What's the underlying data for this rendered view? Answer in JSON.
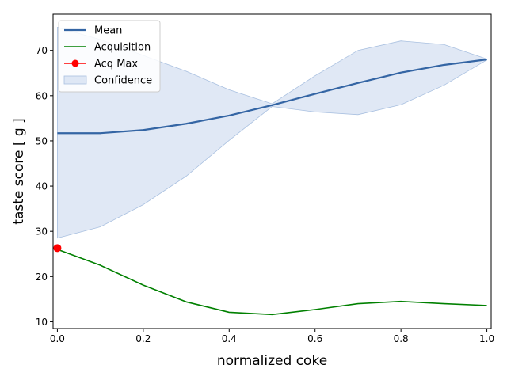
{
  "chart_data": {
    "type": "line",
    "xlabel": "normalized coke",
    "ylabel": "taste score [ g ]",
    "xlim": [
      -0.01,
      1.01
    ],
    "ylim": [
      8.5,
      78
    ],
    "x_ticks": [
      0.0,
      0.2,
      0.4,
      0.6,
      0.8,
      1.0
    ],
    "x_tick_labels": [
      "0.0",
      "0.2",
      "0.4",
      "0.6",
      "0.8",
      "1.0"
    ],
    "y_ticks": [
      10,
      20,
      30,
      40,
      50,
      60,
      70
    ],
    "y_tick_labels": [
      "10",
      "20",
      "30",
      "40",
      "50",
      "60",
      "70"
    ],
    "grid": false,
    "legend_position": "top-left",
    "x": [
      0.0,
      0.1,
      0.2,
      0.3,
      0.4,
      0.5,
      0.6,
      0.7,
      0.8,
      0.9,
      1.0
    ],
    "series": [
      {
        "name": "Mean",
        "style": "line",
        "color": "#3465a4",
        "values": [
          51.7,
          51.7,
          52.4,
          53.8,
          55.6,
          57.9,
          60.4,
          62.8,
          65.1,
          66.8,
          68.0
        ]
      },
      {
        "name": "Acquisition",
        "style": "line",
        "color": "#008000",
        "x": [
          0.0,
          0.1,
          0.2,
          0.3,
          0.4,
          0.5,
          0.6,
          0.7,
          0.8,
          0.9,
          1.0
        ],
        "values": [
          26.0,
          22.5,
          18.1,
          14.4,
          12.1,
          11.6,
          12.7,
          14.0,
          14.5,
          14.0,
          13.6
        ]
      },
      {
        "name": "Acq Max",
        "style": "marker",
        "color": "#ff0000",
        "x": [
          0.0
        ],
        "values": [
          26.3
        ]
      },
      {
        "name": "Confidence",
        "style": "band",
        "color": "#c6d5ec",
        "lower": [
          28.5,
          31.0,
          35.9,
          42.2,
          50.1,
          57.6,
          56.4,
          55.8,
          58.0,
          62.3,
          67.9
        ],
        "upper": [
          75.1,
          72.4,
          68.9,
          65.4,
          61.3,
          58.2,
          64.4,
          70.0,
          72.1,
          71.3,
          68.1
        ]
      }
    ]
  }
}
